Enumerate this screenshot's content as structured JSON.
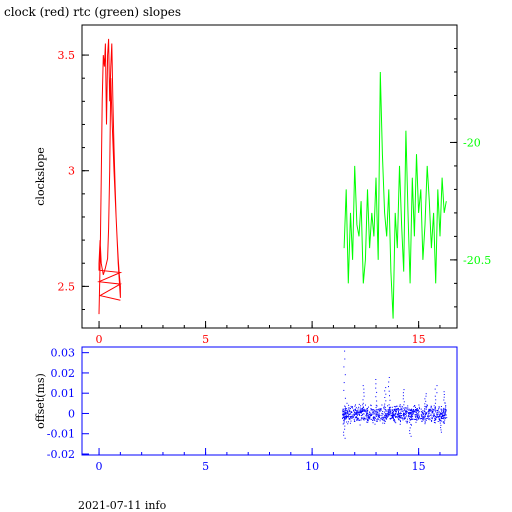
{
  "chart_data": [
    {
      "type": "line",
      "title": "clock (red) rtc (green) slopes",
      "ylabel": "clockslope",
      "xlim": [
        -0.8,
        16.8
      ],
      "ylim": [
        2.32,
        3.63
      ],
      "y2lim": [
        -20.79,
        -19.5
      ],
      "xticks": [
        0,
        5,
        10,
        15
      ],
      "yticks": [
        2.5,
        3,
        3.5
      ],
      "y2ticks": [
        -20,
        -20.5
      ],
      "colors": {
        "clock": "#ff0000",
        "rtc": "#00ff00",
        "axes": "#000000"
      },
      "series": [
        {
          "name": "clock",
          "axis": "left",
          "x": [
            0.0,
            0.05,
            0.1,
            0.15,
            0.2,
            0.25,
            0.3,
            0.35,
            0.4,
            0.45,
            0.5,
            0.55,
            0.6,
            0.65,
            0.7,
            0.75,
            0.8,
            0.85,
            0.9,
            0.95,
            1.0,
            1.0,
            0.9,
            0.8,
            0.7,
            0.6,
            0.55,
            0.5,
            0.45,
            0.4,
            0.3,
            0.2,
            0.1,
            0.05,
            0.0,
            0.0,
            1.0,
            0.0,
            1.0,
            0.05,
            1.0
          ],
          "y": [
            2.38,
            2.6,
            2.95,
            3.3,
            3.5,
            3.45,
            3.55,
            3.2,
            3.5,
            3.57,
            3.3,
            3.45,
            3.55,
            3.3,
            3.1,
            2.95,
            2.8,
            2.7,
            2.62,
            2.55,
            2.5,
            2.45,
            2.6,
            2.8,
            3.0,
            3.25,
            3.4,
            3.0,
            2.75,
            2.62,
            2.58,
            2.55,
            2.6,
            2.7,
            2.6,
            2.57,
            2.56,
            2.52,
            2.51,
            2.46,
            2.44
          ]
        },
        {
          "name": "rtc",
          "axis": "right",
          "x": [
            11.5,
            11.6,
            11.7,
            11.8,
            11.9,
            12.0,
            12.1,
            12.2,
            12.3,
            12.4,
            12.5,
            12.6,
            12.7,
            12.8,
            12.9,
            13.0,
            13.1,
            13.2,
            13.3,
            13.4,
            13.5,
            13.6,
            13.7,
            13.8,
            13.9,
            14.0,
            14.1,
            14.2,
            14.3,
            14.4,
            14.5,
            14.6,
            14.7,
            14.8,
            14.9,
            15.0,
            15.1,
            15.2,
            15.3,
            15.4,
            15.5,
            15.6,
            15.7,
            15.8,
            15.9,
            16.0,
            16.1,
            16.2,
            16.3
          ],
          "y": [
            -20.45,
            -20.2,
            -20.6,
            -20.3,
            -20.5,
            -20.1,
            -20.35,
            -20.4,
            -20.25,
            -20.6,
            -20.5,
            -20.2,
            -20.45,
            -20.3,
            -20.4,
            -20.15,
            -20.5,
            -19.7,
            -20.05,
            -20.3,
            -20.4,
            -20.2,
            -20.55,
            -20.75,
            -20.3,
            -20.45,
            -20.1,
            -20.35,
            -20.55,
            -19.95,
            -20.3,
            -20.6,
            -20.15,
            -20.4,
            -20.05,
            -20.3,
            -20.2,
            -20.5,
            -20.35,
            -20.1,
            -20.25,
            -20.45,
            -20.3,
            -20.6,
            -20.2,
            -20.4,
            -20.15,
            -20.3,
            -20.25
          ]
        }
      ]
    },
    {
      "type": "scatter",
      "title": "",
      "ylabel": "offset(ms)",
      "xlim": [
        -0.8,
        16.8
      ],
      "ylim": [
        -0.0205,
        0.0328
      ],
      "xticks": [
        0,
        5,
        10,
        15
      ],
      "yticks": [
        -0.02,
        -0.01,
        0,
        0.01,
        0.02,
        0.03
      ],
      "ytick_labels": [
        "-0.02",
        "-0.01",
        "0",
        "0.01",
        "0.02",
        "0.03"
      ],
      "colors": {
        "points": "#0000ff",
        "axes": "#0000ff",
        "ticks": "#0000ff"
      },
      "series": [
        {
          "name": "offset",
          "x_range": [
            11.4,
            16.3
          ],
          "spread": 0.004,
          "extremes": [
            {
              "x": 11.5,
              "y": 0.031
            },
            {
              "x": 11.5,
              "y": -0.012
            },
            {
              "x": 12.4,
              "y": 0.014
            },
            {
              "x": 13.0,
              "y": 0.017
            },
            {
              "x": 13.4,
              "y": 0.013
            },
            {
              "x": 13.6,
              "y": 0.018
            },
            {
              "x": 14.3,
              "y": 0.012
            },
            {
              "x": 14.6,
              "y": -0.011
            },
            {
              "x": 15.3,
              "y": 0.01
            },
            {
              "x": 15.8,
              "y": 0.014
            },
            {
              "x": 16.2,
              "y": 0.011
            },
            {
              "x": 16.0,
              "y": -0.009
            }
          ]
        }
      ]
    }
  ],
  "footer": "2021-07-11 info"
}
